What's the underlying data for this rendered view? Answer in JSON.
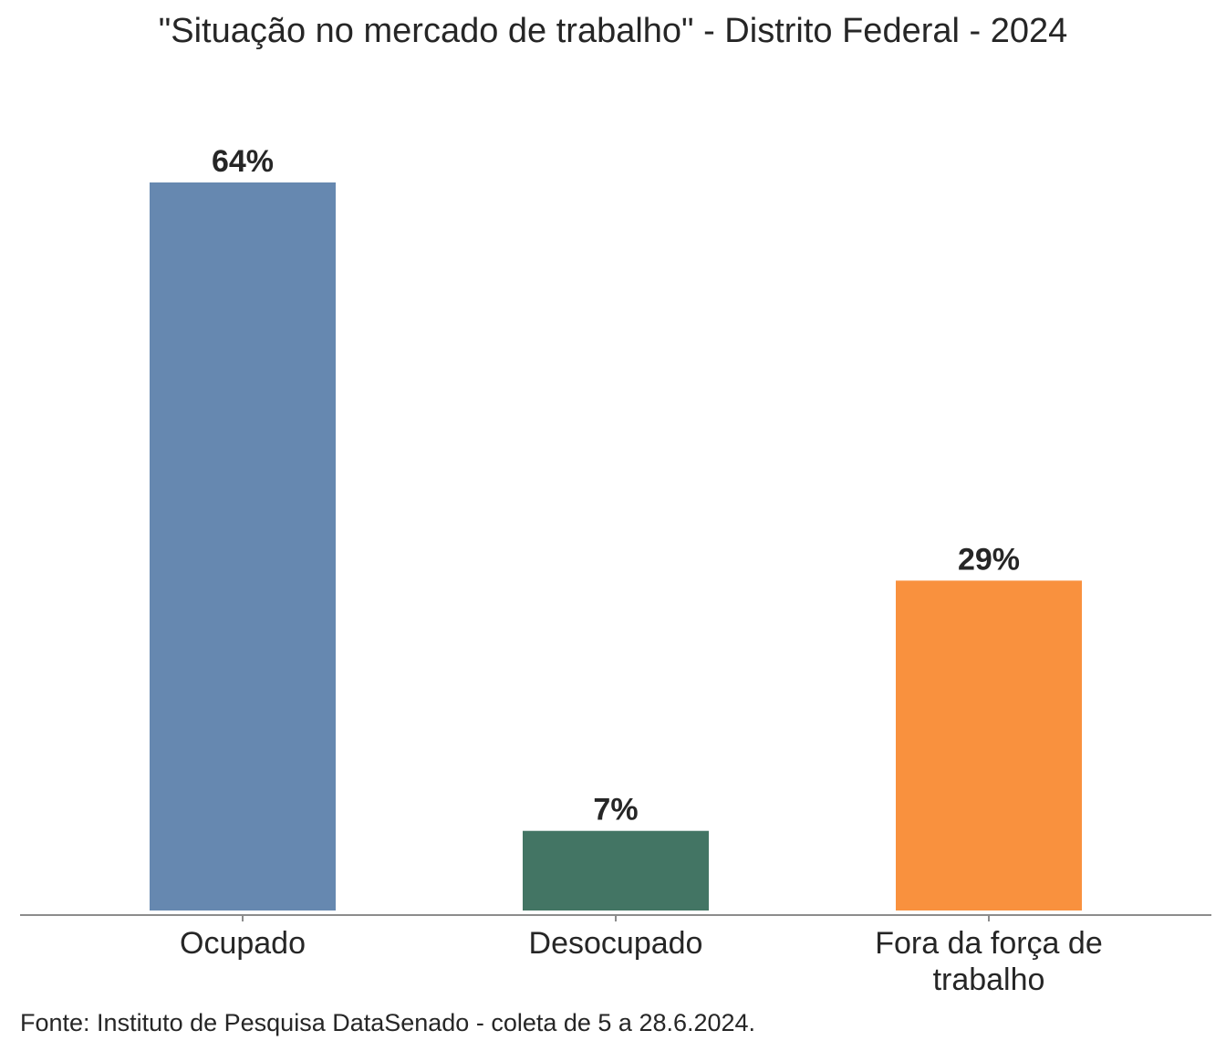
{
  "chart_data": {
    "type": "bar",
    "title": "\"Situação no mercado de trabalho\" - Distrito Federal - 2024",
    "categories": [
      [
        "Ocupado"
      ],
      [
        "Desocupado"
      ],
      [
        "Fora da força de",
        "trabalho"
      ]
    ],
    "values": [
      64,
      7,
      29
    ],
    "data_labels": [
      "64%",
      "7%",
      "29%"
    ],
    "colors": [
      "#6688b0",
      "#437564",
      "#f9913e"
    ],
    "ylim": [
      0,
      64
    ],
    "grid": false,
    "legend": "none",
    "source": "Fonte: Instituto de Pesquisa DataSenado - coleta de 5 a 28.6.2024."
  }
}
